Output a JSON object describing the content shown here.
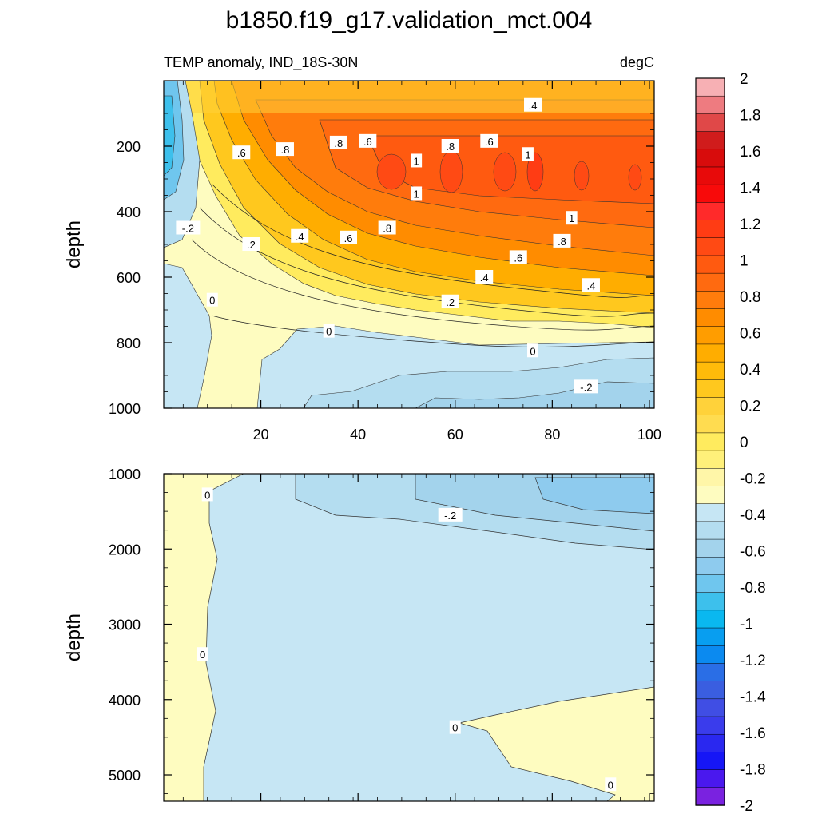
{
  "figure": {
    "title": "b1850.f19_g17.validation_mct.004",
    "colors": {
      "background": "#ffffff",
      "axis": "#000000"
    }
  },
  "chart_data": [
    {
      "type": "heatmap",
      "panel": "upper",
      "title": "",
      "left_string": "TEMP anomaly, IND_18S-30N",
      "right_string": "degC",
      "xlabel": "",
      "ylabel": "depth",
      "xlim": [
        0,
        101
      ],
      "ylim": [
        1000,
        0
      ],
      "y_inverted": true,
      "xticks": [
        20,
        40,
        60,
        80,
        100
      ],
      "xtick_labels": [
        "20",
        "40",
        "60",
        "80",
        "100"
      ],
      "yticks": [
        200,
        400,
        600,
        800,
        1000
      ],
      "ytick_labels": [
        "200",
        "400",
        "600",
        "800",
        "1000"
      ],
      "contour_labels": [
        {
          "text": ".4",
          "x": 76,
          "y": 75
        },
        {
          "text": ".6",
          "x": 16,
          "y": 220
        },
        {
          "text": ".8",
          "x": 25,
          "y": 210
        },
        {
          "text": ".8",
          "x": 36,
          "y": 190
        },
        {
          "text": ".6",
          "x": 42,
          "y": 185
        },
        {
          "text": ".8",
          "x": 59,
          "y": 200
        },
        {
          "text": ".6",
          "x": 67,
          "y": 185
        },
        {
          "text": "1",
          "x": 52,
          "y": 245
        },
        {
          "text": "1",
          "x": 75,
          "y": 225
        },
        {
          "text": "1",
          "x": 52,
          "y": 345
        },
        {
          "text": "1",
          "x": 84,
          "y": 420
        },
        {
          "text": "-.2",
          "x": 5,
          "y": 450
        },
        {
          "text": ".2",
          "x": 18,
          "y": 500
        },
        {
          "text": ".4",
          "x": 28,
          "y": 475
        },
        {
          "text": ".6",
          "x": 38,
          "y": 480
        },
        {
          "text": ".8",
          "x": 46,
          "y": 450
        },
        {
          "text": ".8",
          "x": 82,
          "y": 490
        },
        {
          "text": ".6",
          "x": 73,
          "y": 540
        },
        {
          "text": ".4",
          "x": 66,
          "y": 600
        },
        {
          "text": ".4",
          "x": 88,
          "y": 625
        },
        {
          "text": ".2",
          "x": 59,
          "y": 675
        },
        {
          "text": "0",
          "x": 10,
          "y": 670
        },
        {
          "text": "0",
          "x": 34,
          "y": 765
        },
        {
          "text": "0",
          "x": 76,
          "y": 825
        },
        {
          "text": "-.2",
          "x": 87,
          "y": 935
        }
      ]
    },
    {
      "type": "heatmap",
      "panel": "lower",
      "title": "",
      "xlabel": "",
      "ylabel": "depth",
      "xlim": [
        0,
        101
      ],
      "ylim": [
        5350,
        1000
      ],
      "y_inverted": true,
      "xticks": [
        20,
        40,
        60,
        80,
        100
      ],
      "yticks": [
        1000,
        2000,
        3000,
        4000,
        5000
      ],
      "ytick_labels": [
        "1000",
        "2000",
        "3000",
        "4000",
        "5000"
      ],
      "contour_labels": [
        {
          "text": "0",
          "x": 9,
          "y": 1280
        },
        {
          "text": "-.2",
          "x": 59,
          "y": 1550
        },
        {
          "text": "0",
          "x": 8,
          "y": 3400
        },
        {
          "text": "0",
          "x": 60,
          "y": 4370
        },
        {
          "text": "0",
          "x": 92,
          "y": 5130
        }
      ]
    }
  ],
  "colorbar": {
    "orientation": "vertical",
    "levels": [
      -2,
      -1.9,
      -1.8,
      -1.7,
      -1.6,
      -1.5,
      -1.4,
      -1.3,
      -1.2,
      -1.1,
      -1,
      -0.9,
      -0.8,
      -0.7,
      -0.6,
      -0.5,
      -0.4,
      -0.3,
      -0.2,
      -0.1,
      0,
      0.1,
      0.2,
      0.3,
      0.4,
      0.5,
      0.6,
      0.7,
      0.8,
      0.9,
      1,
      1.1,
      1.2,
      1.3,
      1.4,
      1.5,
      1.6,
      1.7,
      1.8,
      1.9,
      2
    ],
    "label_values": [
      2,
      1.8,
      1.6,
      1.4,
      1.2,
      1,
      0.8,
      0.6,
      0.4,
      0.2,
      0,
      -0.2,
      -0.4,
      -0.6,
      -0.8,
      -1,
      -1.2,
      -1.4,
      -1.6,
      -1.8,
      -2
    ],
    "labels": [
      "2",
      "1.8",
      "1.6",
      "1.4",
      "1.2",
      "1",
      "0.8",
      "0.6",
      "0.4",
      "0.2",
      "0",
      "-0.2",
      "-0.4",
      "-0.6",
      "-0.8",
      "-1",
      "-1.2",
      "-1.4",
      "-1.6",
      "-1.8",
      "-2"
    ],
    "colors_top_to_bottom": [
      "#f7b0b4",
      "#ee7b80",
      "#e04848",
      "#d01c1c",
      "#d80c0c",
      "#e80a0a",
      "#f80a0a",
      "#ff2a2a",
      "#ff3c14",
      "#ff4a14",
      "#ff5a10",
      "#ff6a10",
      "#ff7c0c",
      "#ff8c00",
      "#ff9d00",
      "#ffad00",
      "#ffbb0a",
      "#ffc81e",
      "#ffd23a",
      "#ffdc50",
      "#ffeb5e",
      "#fff07a",
      "#fff6a8",
      "#fefcc0",
      "#c6e6f4",
      "#b4ddf0",
      "#a3d3ec",
      "#8ecbee",
      "#6fc6ee",
      "#3dc0ec",
      "#0ab8f0",
      "#089ef0",
      "#0b8af0",
      "#2a6ee6",
      "#3a5ee0",
      "#404ee4",
      "#3a3cec",
      "#2a28f0",
      "#1616f6",
      "#4a18ee",
      "#7a22e0"
    ]
  }
}
